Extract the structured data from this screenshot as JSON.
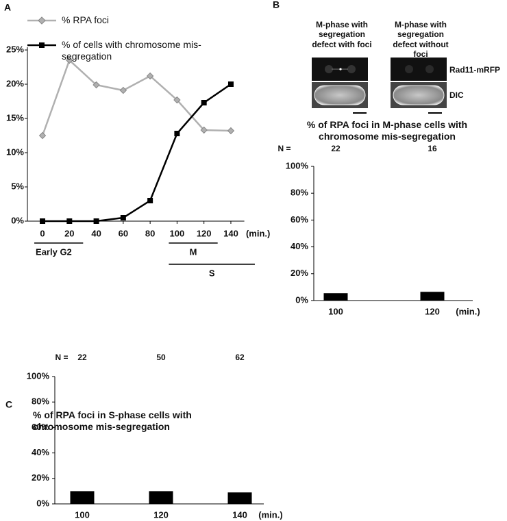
{
  "chart_data": [
    {
      "type": "line",
      "panel": "A",
      "x": [
        0,
        20,
        40,
        60,
        80,
        100,
        120,
        140
      ],
      "series": [
        {
          "name": "% RPA foci",
          "color": "#b0b0b0",
          "values": [
            12.5,
            23.5,
            19.9,
            19.1,
            21.2,
            17.7,
            13.3,
            13.2
          ]
        },
        {
          "name": "% of cells with chromosome mis-segregation",
          "color": "#000000",
          "values": [
            0,
            0,
            0,
            0.5,
            3,
            12.8,
            17.3,
            20
          ]
        }
      ],
      "xlim": [
        -10,
        150
      ],
      "xticks": [
        0,
        20,
        40,
        60,
        80,
        100,
        120,
        140
      ],
      "x_unit": "(min.)",
      "ylim": [
        0,
        25
      ],
      "yticks": [
        {
          "value": 0,
          "label": "0%"
        },
        {
          "value": 5,
          "label": "5%"
        },
        {
          "value": 10,
          "label": "10%"
        },
        {
          "value": 15,
          "label": "15%"
        },
        {
          "value": 20,
          "label": "20%"
        },
        {
          "value": 25,
          "label": "25%"
        }
      ],
      "phases": [
        {
          "label": "Early G2",
          "start": 0,
          "end": 20
        },
        {
          "label": "M",
          "start": 100,
          "end": 120
        },
        {
          "label": "S",
          "start": 100,
          "end": 140
        }
      ]
    },
    {
      "type": "bar",
      "panel": "B",
      "images": [
        {
          "caption": "M-phase with segregation defect with foci"
        },
        {
          "caption": "M-phase with segregation defect without foci"
        }
      ],
      "image_labels": [
        "Rad11-mRFP",
        "DIC"
      ],
      "title": "% of RPA foci in M-phase cells with chromosome mis-segregation",
      "n_label": "N =",
      "n": [
        22,
        16
      ],
      "categories": [
        "100",
        "120"
      ],
      "values": [
        5.5,
        6.5
      ],
      "color": "#000000",
      "x_unit": "(min.)",
      "ylim": [
        0,
        100
      ],
      "yticks": [
        {
          "value": 0,
          "label": "0%"
        },
        {
          "value": 20,
          "label": "20%"
        },
        {
          "value": 40,
          "label": "40%"
        },
        {
          "value": 60,
          "label": "60%"
        },
        {
          "value": 80,
          "label": "80%"
        },
        {
          "value": 100,
          "label": "100%"
        }
      ]
    },
    {
      "type": "bar",
      "panel": "C",
      "title": "% of RPA foci in S-phase cells with chromosome mis-segregation",
      "n_label": "N =",
      "n": [
        22,
        50,
        62
      ],
      "categories": [
        "100",
        "120",
        "140"
      ],
      "values": [
        10,
        10,
        9
      ],
      "color": "#000000",
      "x_unit": "(min.)",
      "ylim": [
        0,
        100
      ],
      "yticks": [
        {
          "value": 0,
          "label": "0%"
        },
        {
          "value": 20,
          "label": "20%"
        },
        {
          "value": 40,
          "label": "40%"
        },
        {
          "value": 60,
          "label": "60%"
        },
        {
          "value": 80,
          "label": "80%"
        },
        {
          "value": 100,
          "label": "100%"
        }
      ]
    }
  ]
}
